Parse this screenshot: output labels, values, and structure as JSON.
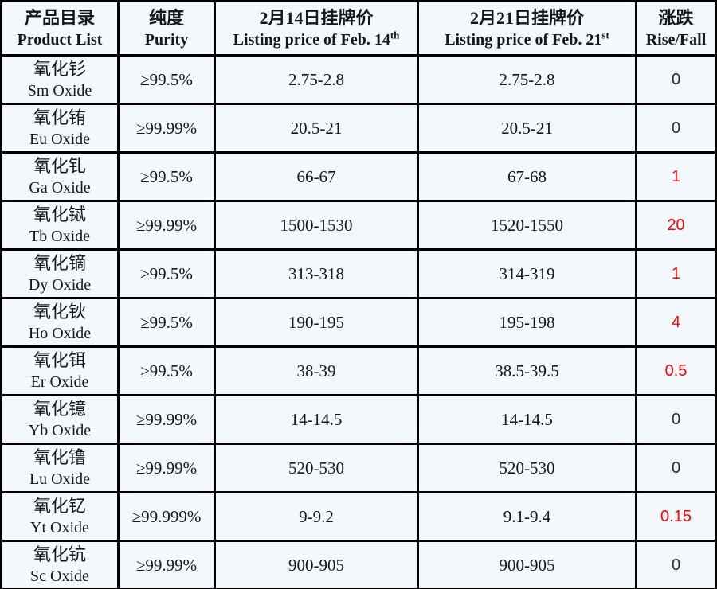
{
  "table": {
    "headers": {
      "product_zh": "产品目录",
      "product_en": "Product List",
      "purity_zh": "纯度",
      "purity_en": "Purity",
      "feb14_zh": "2月14日挂牌价",
      "feb14_en": "Listing price of Feb. 14",
      "feb14_sup": "th",
      "feb21_zh": "2月21日挂牌价",
      "feb21_en": "Listing price of Feb. 21",
      "feb21_sup": "st",
      "risefall_zh": "涨跌",
      "risefall_en": "Rise/Fall"
    },
    "rows": [
      {
        "name_zh": "氧化钐",
        "name_en": "Sm Oxide",
        "purity": "≥99.5%",
        "feb14": "2.75-2.8",
        "feb21": "2.75-2.8",
        "change": "0",
        "up": "false"
      },
      {
        "name_zh": "氧化铕",
        "name_en": "Eu Oxide",
        "purity": "≥99.99%",
        "feb14": "20.5-21",
        "feb21": "20.5-21",
        "change": "0",
        "up": "false"
      },
      {
        "name_zh": "氧化钆",
        "name_en": "Ga Oxide",
        "purity": "≥99.5%",
        "feb14": "66-67",
        "feb21": "67-68",
        "change": "1",
        "up": "true"
      },
      {
        "name_zh": "氧化铽",
        "name_en": "Tb Oxide",
        "purity": "≥99.99%",
        "feb14": "1500-1530",
        "feb21": "1520-1550",
        "change": "20",
        "up": "true"
      },
      {
        "name_zh": "氧化镝",
        "name_en": "Dy Oxide",
        "purity": "≥99.5%",
        "feb14": "313-318",
        "feb21": "314-319",
        "change": "1",
        "up": "true"
      },
      {
        "name_zh": "氧化钬",
        "name_en": "Ho Oxide",
        "purity": "≥99.5%",
        "feb14": "190-195",
        "feb21": "195-198",
        "change": "4",
        "up": "true"
      },
      {
        "name_zh": "氧化铒",
        "name_en": "Er Oxide",
        "purity": "≥99.5%",
        "feb14": "38-39",
        "feb21": "38.5-39.5",
        "change": "0.5",
        "up": "true"
      },
      {
        "name_zh": "氧化镱",
        "name_en": "Yb Oxide",
        "purity": "≥99.99%",
        "feb14": "14-14.5",
        "feb21": "14-14.5",
        "change": "0",
        "up": "false"
      },
      {
        "name_zh": "氧化镥",
        "name_en": "Lu Oxide",
        "purity": "≥99.99%",
        "feb14": "520-530",
        "feb21": "520-530",
        "change": "0",
        "up": "false"
      },
      {
        "name_zh": "氧化钇",
        "name_en": "Yt Oxide",
        "purity": "≥99.999%",
        "feb14": "9-9.2",
        "feb21": "9.1-9.4",
        "change": "0.15",
        "up": "true"
      },
      {
        "name_zh": "氧化钪",
        "name_en": "Sc Oxide",
        "purity": "≥99.99%",
        "feb14": "900-905",
        "feb21": "900-905",
        "change": "0",
        "up": "false"
      }
    ]
  },
  "colors": {
    "rise_color": "#ff0000",
    "text_color": "#16161d",
    "cell_background": "#f3f8fd",
    "border_color": "#000000"
  }
}
